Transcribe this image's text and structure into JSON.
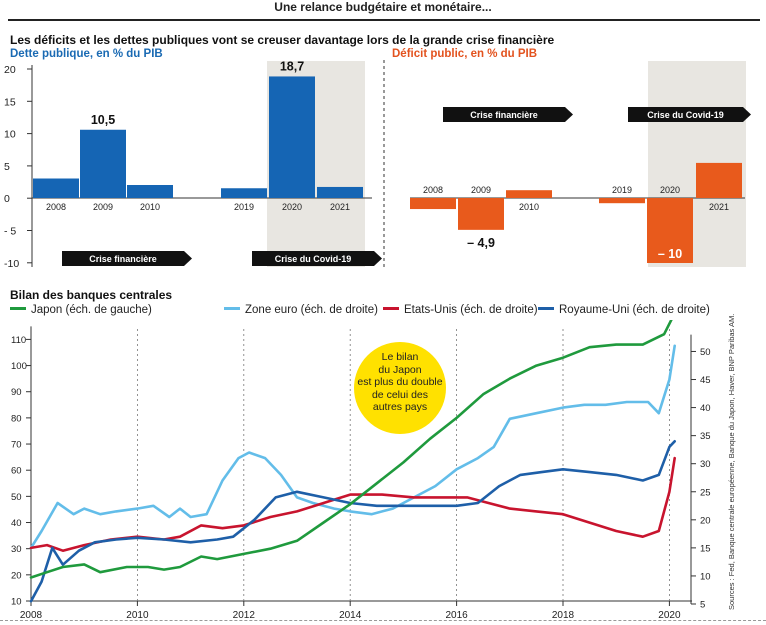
{
  "page_title": "Une relance budgétaire et monétaire...",
  "section1": {
    "title": "Les déficits et les dettes publiques  vont se creuser davantage lors de la grande crise financière",
    "subtitle_left": "Dette publique, en % du PIB",
    "subtitle_right": "Déficit public, en % du PIB",
    "banner_crisis_financial": "Crise financière",
    "banner_crisis_covid": "Crise du Covid-19"
  },
  "section2": {
    "title": "Bilan des banques centrales",
    "bubble_lines": [
      "Le bilan",
      "du Japon",
      "est plus du double",
      "de celui des",
      "autres pays"
    ],
    "source": "Sources : Fed, Banque centrale européenne, Banque du Japon, Haver, BNP Paribas AM."
  },
  "colors": {
    "blue_bar": "#1565b4",
    "orange_bar": "#e85a1c",
    "shade": "#e8e6e1",
    "japan": "#1f9a3d",
    "euro": "#63bde9",
    "us": "#c8142e",
    "uk": "#1e5fa8",
    "bubble": "#ffe100"
  },
  "chart_data": [
    {
      "type": "bar",
      "title": "Dette publique, en % du PIB",
      "groups": [
        {
          "categories": [
            "2008",
            "2009",
            "2010"
          ],
          "values": [
            3,
            10.5,
            2
          ],
          "labels": [
            "",
            "10,5",
            ""
          ]
        },
        {
          "categories": [
            "2019",
            "2020",
            "2021"
          ],
          "values": [
            1.5,
            18.7,
            1.7
          ],
          "labels": [
            "",
            "18,7",
            ""
          ]
        }
      ],
      "yticks": [
        "20",
        "15",
        "10",
        "5",
        "0",
        "- 5",
        "-10"
      ],
      "ylim": [
        -10,
        20
      ]
    },
    {
      "type": "bar",
      "title": "Déficit public, en % du PIB",
      "groups": [
        {
          "categories": [
            "2008",
            "2009",
            "2010"
          ],
          "values": [
            -1.7,
            -4.9,
            1.2
          ],
          "labels": [
            "",
            "– 4,9",
            ""
          ]
        },
        {
          "categories": [
            "2019",
            "2020",
            "2021"
          ],
          "values": [
            -0.8,
            -10,
            5.4
          ],
          "labels": [
            "",
            "– 10",
            ""
          ]
        }
      ],
      "ylim": [
        -10,
        20
      ]
    },
    {
      "type": "line",
      "x_ticks": [
        "2008",
        "2010",
        "2012",
        "2014",
        "2016",
        "2018",
        "2020"
      ],
      "left_ticks": [
        "110",
        "100",
        "90",
        "80",
        "70",
        "60",
        "50",
        "40",
        "30",
        "20",
        "10"
      ],
      "right_ticks": [
        "50",
        "45",
        "40",
        "35",
        "30",
        "25",
        "20",
        "15",
        "10",
        "5"
      ],
      "ylim_left": [
        10,
        115
      ],
      "ylim_right": [
        5,
        53
      ],
      "series": [
        {
          "name": "Japon (éch. de gauche)",
          "axis": "left",
          "points": [
            [
              2008,
              19
            ],
            [
              2008.3,
              21
            ],
            [
              2008.6,
              23
            ],
            [
              2009,
              24
            ],
            [
              2009.3,
              21
            ],
            [
              2009.8,
              23
            ],
            [
              2010.2,
              23
            ],
            [
              2010.5,
              22
            ],
            [
              2010.8,
              23
            ],
            [
              2011.2,
              27
            ],
            [
              2011.5,
              26
            ],
            [
              2012,
              28
            ],
            [
              2012.5,
              30
            ],
            [
              2013,
              33
            ],
            [
              2013.5,
              40
            ],
            [
              2014,
              47
            ],
            [
              2014.5,
              55
            ],
            [
              2015,
              63
            ],
            [
              2015.5,
              72
            ],
            [
              2016,
              80
            ],
            [
              2016.5,
              89
            ],
            [
              2017,
              95
            ],
            [
              2017.5,
              100
            ],
            [
              2018,
              103
            ],
            [
              2018.5,
              107
            ],
            [
              2019,
              108
            ],
            [
              2019.5,
              108
            ],
            [
              2019.9,
              112
            ],
            [
              2020.1,
              120
            ]
          ]
        },
        {
          "name": "Zone euro (éch. de droite)",
          "axis": "right",
          "points": [
            [
              2008,
              15
            ],
            [
              2008.2,
              18
            ],
            [
              2008.5,
              23
            ],
            [
              2008.8,
              21
            ],
            [
              2009,
              22
            ],
            [
              2009.3,
              21
            ],
            [
              2009.6,
              21.5
            ],
            [
              2010,
              22
            ],
            [
              2010.3,
              22.5
            ],
            [
              2010.6,
              20.5
            ],
            [
              2010.8,
              22
            ],
            [
              2011,
              20.5
            ],
            [
              2011.3,
              21
            ],
            [
              2011.6,
              27
            ],
            [
              2011.9,
              31
            ],
            [
              2012.1,
              32
            ],
            [
              2012.4,
              31
            ],
            [
              2012.7,
              28
            ],
            [
              2013,
              24
            ],
            [
              2013.3,
              23
            ],
            [
              2013.7,
              22
            ],
            [
              2014,
              21.5
            ],
            [
              2014.4,
              21
            ],
            [
              2014.8,
              22
            ],
            [
              2015.2,
              24
            ],
            [
              2015.6,
              26
            ],
            [
              2016,
              29
            ],
            [
              2016.4,
              31
            ],
            [
              2016.7,
              33
            ],
            [
              2017,
              38
            ],
            [
              2017.5,
              39
            ],
            [
              2018,
              40
            ],
            [
              2018.4,
              40.5
            ],
            [
              2018.8,
              40.5
            ],
            [
              2019.2,
              41
            ],
            [
              2019.6,
              41
            ],
            [
              2019.8,
              39
            ],
            [
              2020,
              45
            ],
            [
              2020.1,
              51
            ]
          ]
        },
        {
          "name": "Etats-Unis (éch. de droite)",
          "axis": "right",
          "points": [
            [
              2008,
              15
            ],
            [
              2008.3,
              15.5
            ],
            [
              2008.6,
              14.5
            ],
            [
              2009,
              15.5
            ],
            [
              2009.5,
              16.5
            ],
            [
              2010,
              17
            ],
            [
              2010.5,
              16.5
            ],
            [
              2010.8,
              17
            ],
            [
              2011.2,
              19
            ],
            [
              2011.6,
              18.5
            ],
            [
              2012,
              19
            ],
            [
              2012.5,
              20.5
            ],
            [
              2013,
              21.5
            ],
            [
              2013.5,
              23
            ],
            [
              2014,
              24.5
            ],
            [
              2014.6,
              24.5
            ],
            [
              2015.2,
              24
            ],
            [
              2015.8,
              24
            ],
            [
              2016.2,
              24
            ],
            [
              2016.6,
              23
            ],
            [
              2017,
              22
            ],
            [
              2017.5,
              21.5
            ],
            [
              2018,
              21
            ],
            [
              2018.5,
              19.5
            ],
            [
              2019,
              18
            ],
            [
              2019.5,
              17
            ],
            [
              2019.8,
              18
            ],
            [
              2020,
              25
            ],
            [
              2020.1,
              31
            ]
          ]
        },
        {
          "name": "Royaume-Uni (éch. de droite)",
          "axis": "right",
          "points": [
            [
              2008,
              5.5
            ],
            [
              2008.2,
              9
            ],
            [
              2008.4,
              15
            ],
            [
              2008.6,
              12
            ],
            [
              2008.9,
              14.5
            ],
            [
              2009.2,
              16
            ],
            [
              2009.6,
              16.5
            ],
            [
              2010,
              16.8
            ],
            [
              2010.5,
              16.5
            ],
            [
              2011,
              16
            ],
            [
              2011.5,
              16.5
            ],
            [
              2011.8,
              17
            ],
            [
              2012.2,
              20
            ],
            [
              2012.6,
              24
            ],
            [
              2013,
              25
            ],
            [
              2013.5,
              24
            ],
            [
              2014,
              23
            ],
            [
              2014.5,
              22.5
            ],
            [
              2015,
              22.5
            ],
            [
              2015.5,
              22.5
            ],
            [
              2016,
              22.5
            ],
            [
              2016.4,
              23
            ],
            [
              2016.8,
              26
            ],
            [
              2017.2,
              28
            ],
            [
              2017.6,
              28.5
            ],
            [
              2018,
              29
            ],
            [
              2018.5,
              28.5
            ],
            [
              2019,
              28
            ],
            [
              2019.5,
              27
            ],
            [
              2019.8,
              28
            ],
            [
              2020,
              33
            ],
            [
              2020.1,
              34
            ]
          ]
        }
      ]
    }
  ]
}
